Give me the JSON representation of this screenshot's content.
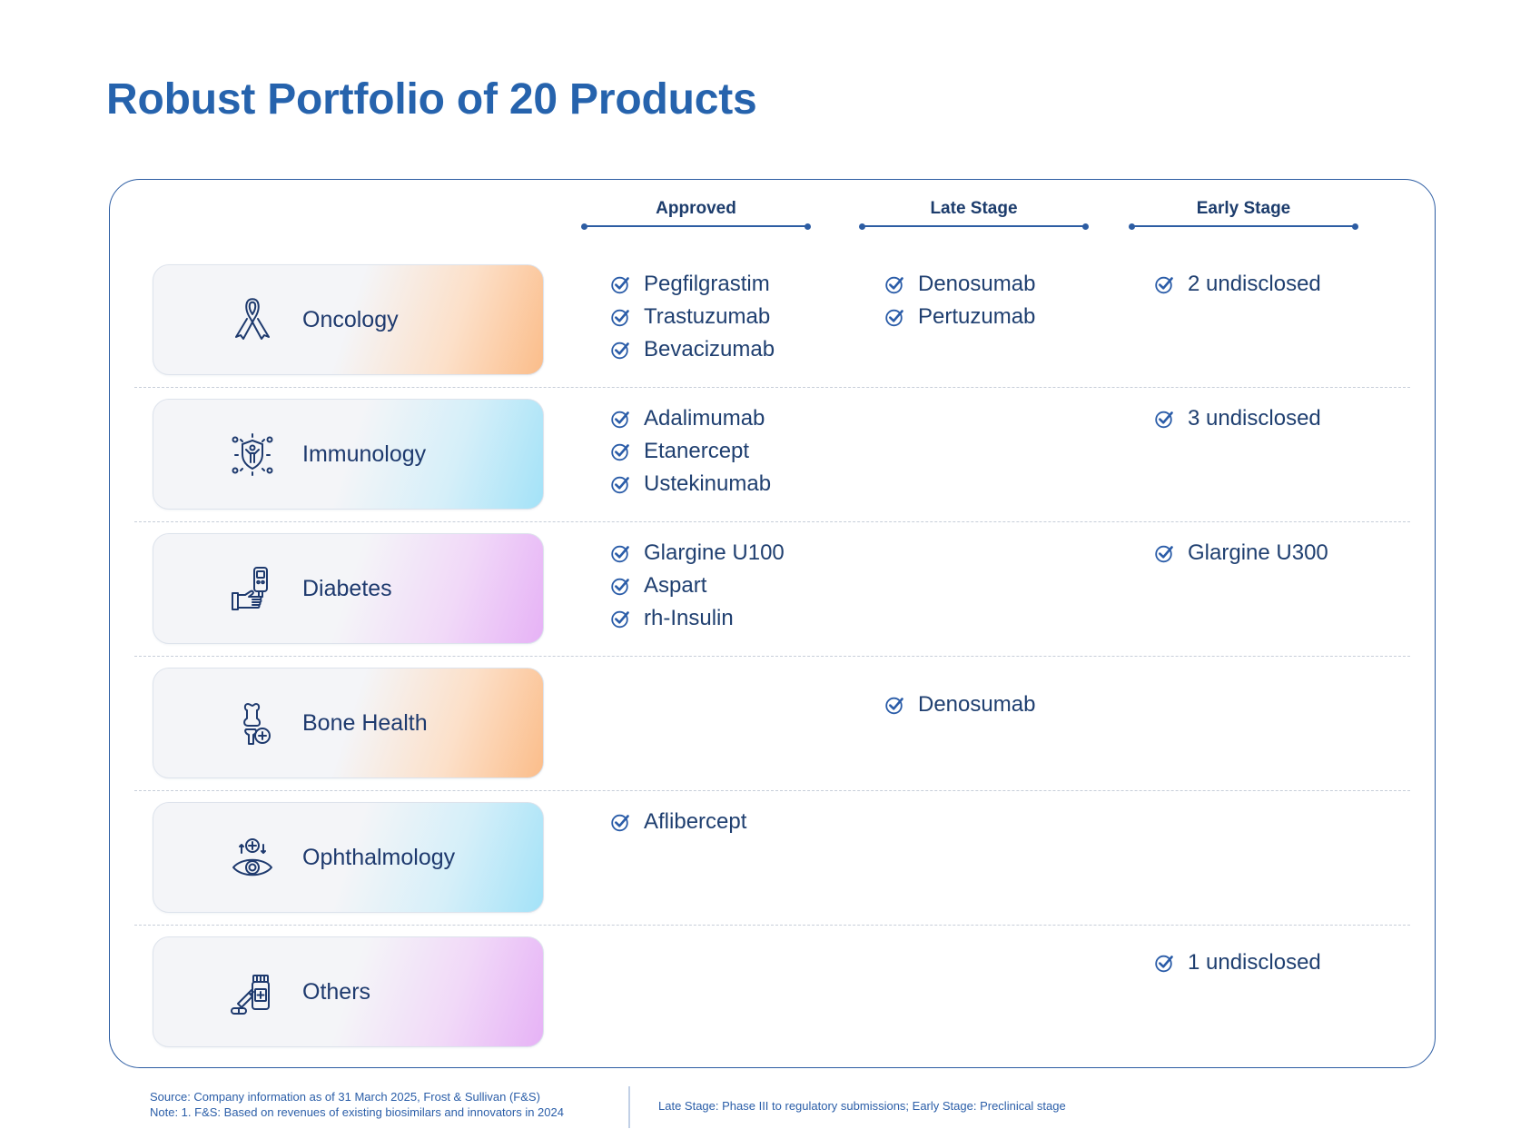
{
  "title": "Robust Portfolio of 20 Products",
  "columns": [
    "Approved",
    "Late Stage",
    "Early Stage"
  ],
  "colors": {
    "title": "#2663ad",
    "text": "#1f3f70",
    "border": "#2d5da3",
    "check": "#2a5ca8",
    "card_base": "#f4f5f8"
  },
  "rows": [
    {
      "label": "Oncology",
      "icon": "ribbon-icon",
      "accent": "#fbbd8a",
      "accent_soft": "#fce0c9",
      "approved": [
        "Pegfilgrastim",
        "Trastuzumab",
        "Bevacizumab"
      ],
      "late_stage": [
        "Denosumab",
        "Pertuzumab"
      ],
      "early_stage": [
        "2 undisclosed"
      ]
    },
    {
      "label": "Immunology",
      "icon": "immune-shield-icon",
      "accent": "#a3e2f8",
      "accent_soft": "#d5eff9",
      "approved": [
        "Adalimumab",
        "Etanercept",
        "Ustekinumab"
      ],
      "late_stage": [],
      "early_stage": [
        "3 undisclosed"
      ]
    },
    {
      "label": "Diabetes",
      "icon": "glucose-meter-icon",
      "accent": "#e6b2f6",
      "accent_soft": "#f1d9f8",
      "approved": [
        "Glargine U100",
        "Aspart",
        "rh-Insulin"
      ],
      "late_stage": [],
      "early_stage": [
        "Glargine U300"
      ]
    },
    {
      "label": "Bone Health",
      "icon": "bone-joint-icon",
      "accent": "#fbbd8a",
      "accent_soft": "#fce0c9",
      "approved": [],
      "late_stage": [
        "Denosumab"
      ],
      "early_stage": []
    },
    {
      "label": "Ophthalmology",
      "icon": "eye-care-icon",
      "accent": "#a3e2f8",
      "accent_soft": "#d5eff9",
      "approved": [
        "Aflibercept"
      ],
      "late_stage": [],
      "early_stage": []
    },
    {
      "label": "Others",
      "icon": "medicine-bottle-icon",
      "accent": "#e6b2f6",
      "accent_soft": "#f1d9f8",
      "approved": [],
      "late_stage": [],
      "early_stage": [
        "1 undisclosed"
      ]
    }
  ],
  "footer": {
    "source": "Source: Company information as of 31 March 2025, Frost & Sullivan (F&S)",
    "note": "Note: 1. F&S: Based on revenues of existing biosimilars and innovators in 2024",
    "legend": "Late Stage: Phase III to regulatory submissions; Early Stage: Preclinical stage"
  }
}
